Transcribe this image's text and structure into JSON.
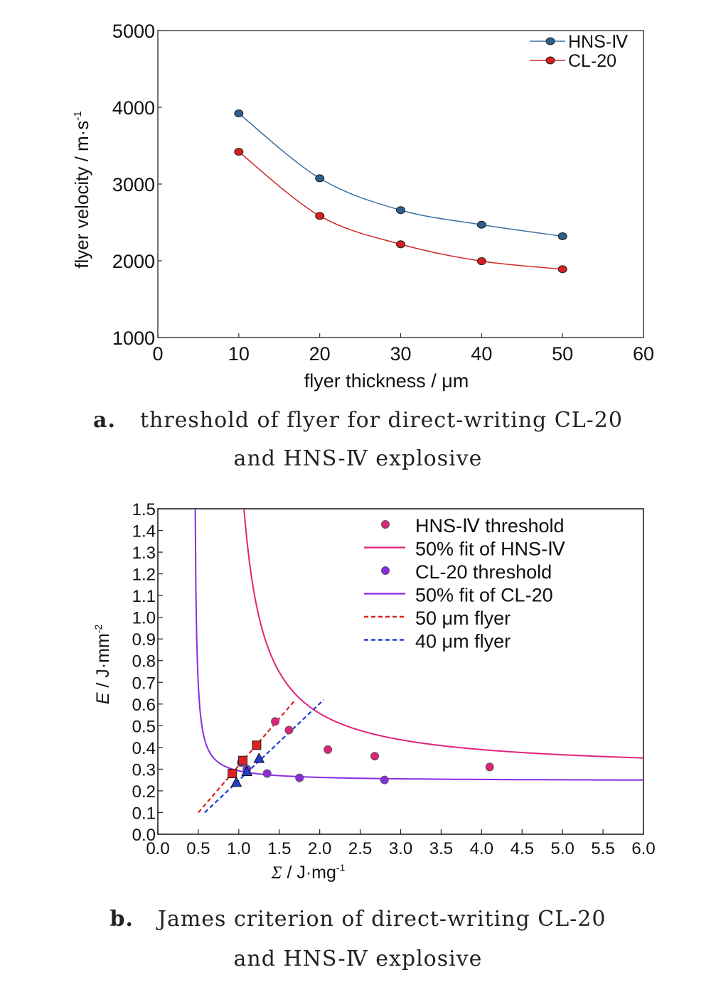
{
  "chart_data": [
    {
      "id": "a",
      "type": "line",
      "xlabel": "flyer thickness / μm",
      "ylabel": "flyer velocity / m·s",
      "ylabel_sup": "-1",
      "xlim": [
        0,
        60
      ],
      "ylim": [
        1000,
        5000
      ],
      "xticks": [
        "0",
        "10",
        "20",
        "30",
        "40",
        "50",
        "60"
      ],
      "yticks": [
        "1000",
        "2000",
        "3000",
        "4000",
        "5000"
      ],
      "grid": false,
      "legend_position": "top-right",
      "series": [
        {
          "name": "HNS-Ⅳ",
          "color": "#3d6fa0",
          "marker_color": "#2f5f8c",
          "x": [
            10,
            20,
            30,
            40,
            50
          ],
          "y": [
            3920,
            3075,
            2660,
            2470,
            2320
          ]
        },
        {
          "name": "CL-20",
          "color": "#d02828",
          "marker_color": "#d81e1e",
          "x": [
            10,
            20,
            30,
            40,
            50
          ],
          "y": [
            3420,
            2585,
            2215,
            1995,
            1890
          ]
        }
      ]
    },
    {
      "id": "b",
      "type": "scatter",
      "xlabel_sym": "Σ",
      "xlabel_rest": " / J·mg",
      "xlabel_sup": "-1",
      "ylabel_sym": "E",
      "ylabel_rest": " / J·mm",
      "ylabel_sup": "-2",
      "xlim": [
        0,
        6
      ],
      "ylim": [
        0,
        1.5
      ],
      "xticks": [
        "0.0",
        "0.5",
        "1.0",
        "1.5",
        "2.0",
        "2.5",
        "3.0",
        "3.5",
        "4.0",
        "4.5",
        "5.0",
        "5.5",
        "6.0"
      ],
      "yticks": [
        "0.0",
        "0.1",
        "0.2",
        "0.3",
        "0.4",
        "0.5",
        "0.6",
        "0.7",
        "0.8",
        "0.9",
        "1.0",
        "1.1",
        "1.2",
        "1.3",
        "1.4",
        "1.5"
      ],
      "grid": false,
      "legend_position": "top-right",
      "legend": [
        {
          "label": "HNS-Ⅳ threshold",
          "kind": "marker",
          "color": "#e0237a"
        },
        {
          "label": "50% fit of HNS-Ⅳ",
          "kind": "line",
          "color": "#e0237a"
        },
        {
          "label": "CL-20 threshold",
          "kind": "marker",
          "color": "#8a2be2"
        },
        {
          "label": "50% fit of CL-20",
          "kind": "line",
          "color": "#8a2be2"
        },
        {
          "label": "50 μm flyer",
          "kind": "dash",
          "color": "#e02020"
        },
        {
          "label": "40 μm flyer",
          "kind": "dash",
          "color": "#1f3fcf"
        }
      ],
      "hns_threshold": {
        "x": [
          1.45,
          1.62,
          2.1,
          2.68,
          4.1
        ],
        "y": [
          0.52,
          0.48,
          0.39,
          0.36,
          0.31
        ]
      },
      "hns_fit": {
        "asymptote": 0.29,
        "coef": 0.32,
        "x0": 0.8
      },
      "cl20_threshold": {
        "x": [
          1.03,
          1.1,
          1.35,
          1.75,
          2.8
        ],
        "y": [
          0.33,
          0.3,
          0.28,
          0.26,
          0.25
        ]
      },
      "cl20_fit": {
        "asymptote": 0.245,
        "coef": 0.0265,
        "x0": 0.44
      },
      "flyer_50um_line": {
        "x": [
          0.5,
          1.7
        ],
        "y": [
          0.1,
          0.62
        ]
      },
      "flyer_50um_points": {
        "x": [
          0.92,
          1.05,
          1.22
        ],
        "y": [
          0.28,
          0.34,
          0.41
        ]
      },
      "flyer_40um_line": {
        "x": [
          0.58,
          2.05
        ],
        "y": [
          0.1,
          0.62
        ]
      },
      "flyer_40um_points": {
        "x": [
          0.97,
          1.1,
          1.25
        ],
        "y": [
          0.24,
          0.29,
          0.35
        ]
      }
    }
  ],
  "captions": {
    "a_label": "a.",
    "a_line1": "threshold of flyer for direct-writing CL-20",
    "a_line2": "and HNS-Ⅳ explosive",
    "b_label": "b.",
    "b_line1": "James criterion of direct-writing CL-20",
    "b_line2": "and HNS-Ⅳ explosive"
  }
}
